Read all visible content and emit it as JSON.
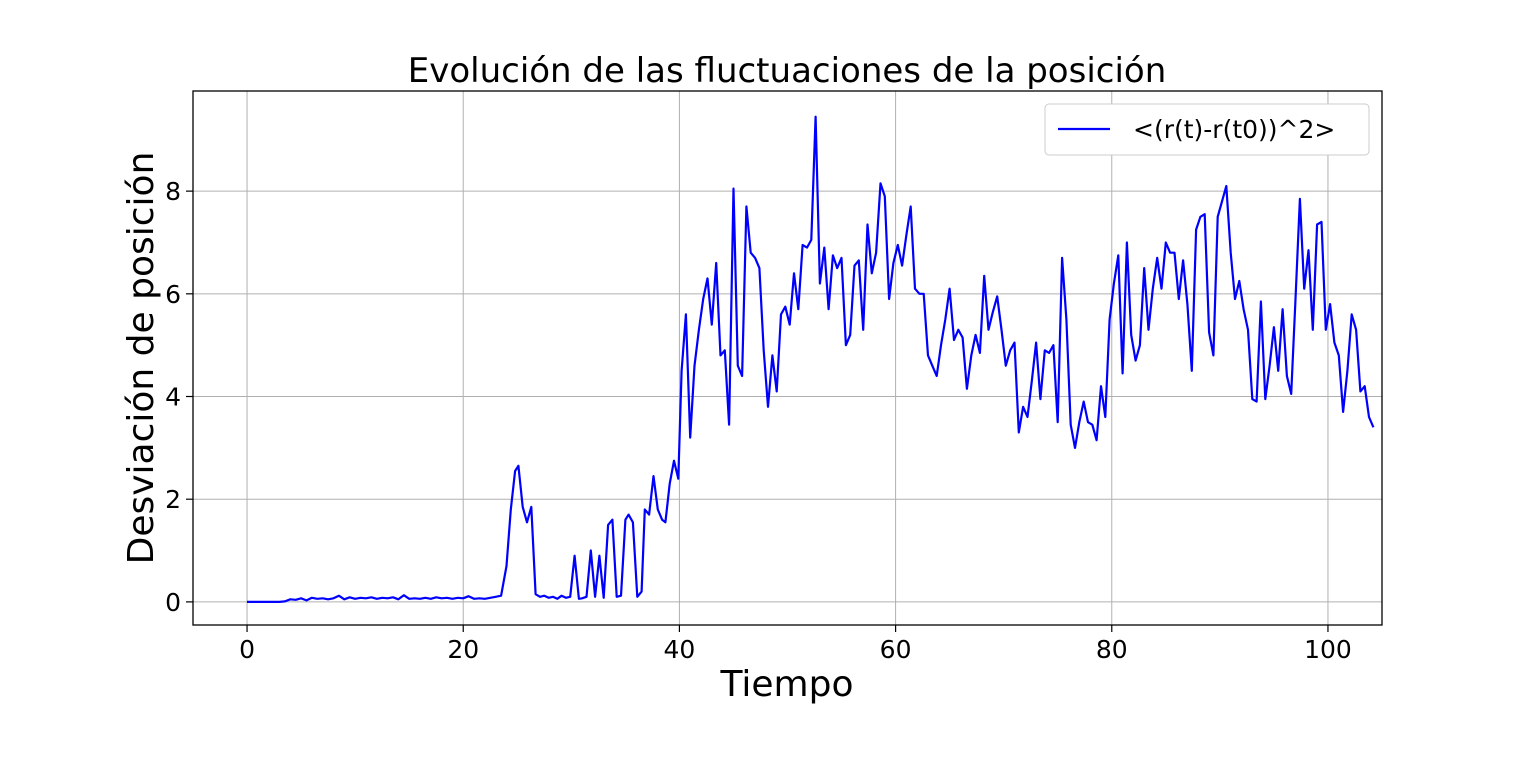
{
  "chart_data": {
    "type": "line",
    "title": "Evolución de las fluctuaciones de la posición",
    "xlabel": "Tiempo",
    "ylabel": "Desviación de posición",
    "xlim": [
      -5,
      105
    ],
    "ylim": [
      -0.45,
      9.95
    ],
    "xticks": [
      0,
      20,
      40,
      60,
      80,
      100
    ],
    "yticks": [
      0,
      2,
      4,
      6,
      8
    ],
    "xtick_labels": [
      "0",
      "20",
      "40",
      "60",
      "80",
      "100"
    ],
    "ytick_labels": [
      "0",
      "2",
      "4",
      "6",
      "8"
    ],
    "grid": true,
    "legend": {
      "position": "top-right",
      "entries": [
        "<(r(t)-r(t0))^2>"
      ]
    },
    "series": [
      {
        "name": "<(r(t)-r(t0))^2>",
        "color": "#0000ff",
        "points": [
          [
            0,
            0
          ],
          [
            1,
            0
          ],
          [
            2,
            0
          ],
          [
            3,
            0
          ],
          [
            3.5,
            0.01
          ],
          [
            4,
            0.05
          ],
          [
            4.5,
            0.04
          ],
          [
            5,
            0.07
          ],
          [
            5.5,
            0.03
          ],
          [
            6,
            0.08
          ],
          [
            6.5,
            0.06
          ],
          [
            7,
            0.07
          ],
          [
            7.5,
            0.05
          ],
          [
            8,
            0.07
          ],
          [
            8.5,
            0.12
          ],
          [
            9,
            0.05
          ],
          [
            9.5,
            0.09
          ],
          [
            10,
            0.06
          ],
          [
            10.5,
            0.08
          ],
          [
            11,
            0.07
          ],
          [
            11.5,
            0.09
          ],
          [
            12,
            0.06
          ],
          [
            12.5,
            0.08
          ],
          [
            13,
            0.07
          ],
          [
            13.5,
            0.09
          ],
          [
            14,
            0.05
          ],
          [
            14.5,
            0.13
          ],
          [
            15,
            0.06
          ],
          [
            15.5,
            0.07
          ],
          [
            16,
            0.06
          ],
          [
            16.5,
            0.08
          ],
          [
            17,
            0.06
          ],
          [
            17.5,
            0.09
          ],
          [
            18,
            0.07
          ],
          [
            18.5,
            0.08
          ],
          [
            19,
            0.06
          ],
          [
            19.5,
            0.08
          ],
          [
            20,
            0.07
          ],
          [
            20.5,
            0.11
          ],
          [
            21,
            0.06
          ],
          [
            21.5,
            0.07
          ],
          [
            22,
            0.06
          ],
          [
            22.5,
            0.08
          ],
          [
            23,
            0.1
          ],
          [
            23.5,
            0.12
          ],
          [
            24,
            0.7
          ],
          [
            24.4,
            1.8
          ],
          [
            24.8,
            2.55
          ],
          [
            25.1,
            2.65
          ],
          [
            25.5,
            1.85
          ],
          [
            25.9,
            1.55
          ],
          [
            26.3,
            1.85
          ],
          [
            26.7,
            0.15
          ],
          [
            27.1,
            0.1
          ],
          [
            27.5,
            0.12
          ],
          [
            27.9,
            0.08
          ],
          [
            28.3,
            0.1
          ],
          [
            28.7,
            0.06
          ],
          [
            29.1,
            0.12
          ],
          [
            29.5,
            0.08
          ],
          [
            29.9,
            0.1
          ],
          [
            30.3,
            0.9
          ],
          [
            30.7,
            0.06
          ],
          [
            31,
            0.07
          ],
          [
            31.4,
            0.1
          ],
          [
            31.8,
            1.0
          ],
          [
            32.2,
            0.1
          ],
          [
            32.6,
            0.9
          ],
          [
            33,
            0.08
          ],
          [
            33.4,
            1.5
          ],
          [
            33.8,
            1.6
          ],
          [
            34.2,
            0.1
          ],
          [
            34.6,
            0.12
          ],
          [
            35,
            1.6
          ],
          [
            35.3,
            1.7
          ],
          [
            35.7,
            1.55
          ],
          [
            36.1,
            0.1
          ],
          [
            36.5,
            0.2
          ],
          [
            36.8,
            1.8
          ],
          [
            37.2,
            1.7
          ],
          [
            37.6,
            2.45
          ],
          [
            38,
            1.8
          ],
          [
            38.4,
            1.6
          ],
          [
            38.7,
            1.55
          ],
          [
            39.1,
            2.3
          ],
          [
            39.5,
            2.75
          ],
          [
            39.9,
            2.4
          ],
          [
            40.2,
            4.5
          ],
          [
            40.6,
            5.6
          ],
          [
            41,
            3.2
          ],
          [
            41.4,
            4.6
          ],
          [
            41.8,
            5.3
          ],
          [
            42.2,
            5.9
          ],
          [
            42.6,
            6.3
          ],
          [
            43,
            5.4
          ],
          [
            43.4,
            6.6
          ],
          [
            43.8,
            4.8
          ],
          [
            44.2,
            4.9
          ],
          [
            44.6,
            3.45
          ],
          [
            45,
            8.05
          ],
          [
            45.4,
            4.6
          ],
          [
            45.8,
            4.4
          ],
          [
            46.2,
            7.7
          ],
          [
            46.6,
            6.8
          ],
          [
            47,
            6.7
          ],
          [
            47.4,
            6.5
          ],
          [
            47.8,
            4.9
          ],
          [
            48.2,
            3.8
          ],
          [
            48.6,
            4.8
          ],
          [
            49,
            4.1
          ],
          [
            49.4,
            5.6
          ],
          [
            49.8,
            5.75
          ],
          [
            50.2,
            5.4
          ],
          [
            50.6,
            6.4
          ],
          [
            51,
            5.7
          ],
          [
            51.4,
            6.95
          ],
          [
            51.8,
            6.9
          ],
          [
            52.2,
            7.05
          ],
          [
            52.6,
            9.45
          ],
          [
            53,
            6.2
          ],
          [
            53.4,
            6.9
          ],
          [
            53.8,
            5.7
          ],
          [
            54.2,
            6.75
          ],
          [
            54.6,
            6.5
          ],
          [
            55,
            6.7
          ],
          [
            55.4,
            5.0
          ],
          [
            55.8,
            5.2
          ],
          [
            56.2,
            6.55
          ],
          [
            56.6,
            6.65
          ],
          [
            57,
            5.3
          ],
          [
            57.4,
            7.35
          ],
          [
            57.8,
            6.4
          ],
          [
            58.2,
            6.8
          ],
          [
            58.6,
            8.15
          ],
          [
            59,
            7.9
          ],
          [
            59.4,
            5.9
          ],
          [
            59.8,
            6.6
          ],
          [
            60.2,
            6.95
          ],
          [
            60.6,
            6.55
          ],
          [
            61,
            7.15
          ],
          [
            61.4,
            7.7
          ],
          [
            61.8,
            6.1
          ],
          [
            62.2,
            6.0
          ],
          [
            62.6,
            6.0
          ],
          [
            63,
            4.8
          ],
          [
            63.4,
            4.6
          ],
          [
            63.8,
            4.4
          ],
          [
            64.2,
            5.0
          ],
          [
            64.6,
            5.5
          ],
          [
            65,
            6.1
          ],
          [
            65.4,
            5.1
          ],
          [
            65.8,
            5.3
          ],
          [
            66.2,
            5.15
          ],
          [
            66.6,
            4.15
          ],
          [
            67,
            4.8
          ],
          [
            67.4,
            5.2
          ],
          [
            67.8,
            4.85
          ],
          [
            68.2,
            6.35
          ],
          [
            68.6,
            5.3
          ],
          [
            69,
            5.65
          ],
          [
            69.4,
            5.95
          ],
          [
            69.8,
            5.3
          ],
          [
            70.2,
            4.6
          ],
          [
            70.6,
            4.9
          ],
          [
            71,
            5.05
          ],
          [
            71.4,
            3.3
          ],
          [
            71.8,
            3.8
          ],
          [
            72.2,
            3.6
          ],
          [
            72.6,
            4.3
          ],
          [
            73,
            5.05
          ],
          [
            73.4,
            3.95
          ],
          [
            73.8,
            4.9
          ],
          [
            74.2,
            4.85
          ],
          [
            74.6,
            5.0
          ],
          [
            75,
            3.5
          ],
          [
            75.4,
            6.7
          ],
          [
            75.8,
            5.5
          ],
          [
            76.2,
            3.45
          ],
          [
            76.6,
            3.0
          ],
          [
            77,
            3.5
          ],
          [
            77.4,
            3.9
          ],
          [
            77.8,
            3.5
          ],
          [
            78.2,
            3.45
          ],
          [
            78.6,
            3.15
          ],
          [
            79,
            4.2
          ],
          [
            79.4,
            3.6
          ],
          [
            79.8,
            5.5
          ],
          [
            80.2,
            6.2
          ],
          [
            80.6,
            6.75
          ],
          [
            81,
            4.45
          ],
          [
            81.4,
            7.0
          ],
          [
            81.8,
            5.2
          ],
          [
            82.2,
            4.7
          ],
          [
            82.6,
            5.0
          ],
          [
            83,
            6.5
          ],
          [
            83.4,
            5.3
          ],
          [
            83.8,
            6.1
          ],
          [
            84.2,
            6.7
          ],
          [
            84.6,
            6.1
          ],
          [
            85,
            7.0
          ],
          [
            85.4,
            6.8
          ],
          [
            85.8,
            6.8
          ],
          [
            86.2,
            5.9
          ],
          [
            86.6,
            6.65
          ],
          [
            87,
            5.8
          ],
          [
            87.4,
            4.5
          ],
          [
            87.8,
            7.25
          ],
          [
            88.2,
            7.5
          ],
          [
            88.6,
            7.55
          ],
          [
            89,
            5.25
          ],
          [
            89.4,
            4.8
          ],
          [
            89.8,
            7.5
          ],
          [
            90.2,
            7.8
          ],
          [
            90.6,
            8.1
          ],
          [
            91,
            6.8
          ],
          [
            91.4,
            5.9
          ],
          [
            91.8,
            6.25
          ],
          [
            92.2,
            5.7
          ],
          [
            92.6,
            5.3
          ],
          [
            93,
            3.95
          ],
          [
            93.4,
            3.9
          ],
          [
            93.8,
            5.85
          ],
          [
            94.2,
            3.95
          ],
          [
            94.6,
            4.6
          ],
          [
            95,
            5.35
          ],
          [
            95.4,
            4.5
          ],
          [
            95.8,
            5.7
          ],
          [
            96.2,
            4.4
          ],
          [
            96.6,
            4.05
          ],
          [
            97,
            5.9
          ],
          [
            97.4,
            7.85
          ],
          [
            97.8,
            6.1
          ],
          [
            98.2,
            6.85
          ],
          [
            98.6,
            5.3
          ],
          [
            99,
            7.35
          ],
          [
            99.4,
            7.4
          ],
          [
            99.8,
            5.3
          ],
          [
            100.2,
            5.8
          ],
          [
            100.6,
            5.05
          ],
          [
            101,
            4.8
          ],
          [
            101.4,
            3.7
          ],
          [
            101.8,
            4.5
          ],
          [
            102.2,
            5.6
          ],
          [
            102.6,
            5.3
          ],
          [
            103,
            4.1
          ],
          [
            103.4,
            4.2
          ],
          [
            103.8,
            3.6
          ],
          [
            104.2,
            3.4
          ]
        ]
      }
    ]
  }
}
